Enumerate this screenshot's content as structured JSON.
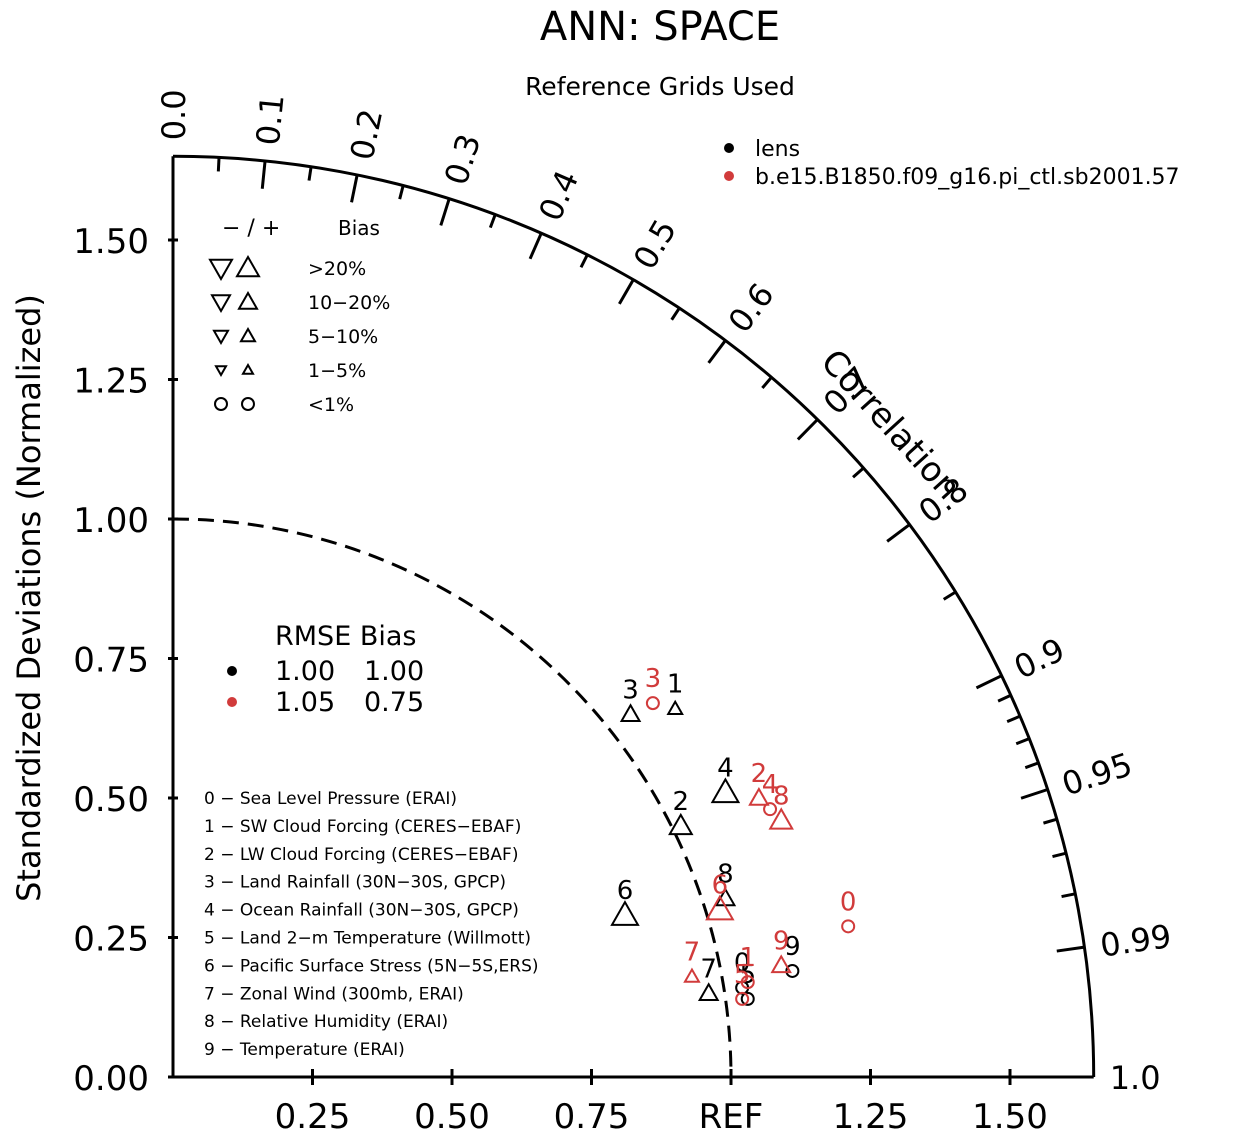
{
  "chart_data": {
    "type": "scatter",
    "title": "ANN: SPACE",
    "subtitle": "Reference Grids Used",
    "ylabel": "Standardized Deviations (Normalized)",
    "arc_label": "Correlation",
    "xlim": [
      0,
      1.65
    ],
    "ylim": [
      0,
      1.65
    ],
    "y_ticks": [
      "0.00",
      "0.25",
      "0.50",
      "0.75",
      "1.00",
      "1.25",
      "1.50"
    ],
    "x_ticks": [
      "0.25",
      "0.50",
      "0.75",
      "REF",
      "1.25",
      "1.50"
    ],
    "correlation_ticks": [
      "0.0",
      "0.1",
      "0.2",
      "0.3",
      "0.4",
      "0.5",
      "0.6",
      "0.7",
      "0.8",
      "0.9",
      "0.95",
      "0.99",
      "1.0"
    ],
    "legend": [
      {
        "name": "lens",
        "color": "#000000"
      },
      {
        "name": "b.e15.B1850.f09_g16.pi_ctl.sb2001.57",
        "color": "#d13b3b"
      }
    ],
    "bias_legend": {
      "header_symbols": "− / +",
      "header_label": "Bias",
      "rows": [
        "&gt;20%",
        "10−20%",
        "5−10%",
        "1−5%",
        "&lt;1%"
      ]
    },
    "rmse_bias_legend": {
      "header": "RMSE  Bias",
      "rows": [
        {
          "rmse": "1.00",
          "bias": "1.00",
          "color": "#000000"
        },
        {
          "rmse": "1.05",
          "bias": "0.75",
          "color": "#d13b3b"
        }
      ]
    },
    "variables": [
      "0 − Sea Level Pressure (ERAI)",
      "1 − SW Cloud Forcing (CERES−EBAF)",
      "2 − LW Cloud Forcing (CERES−EBAF)",
      "3 − Land Rainfall (30N−30S, GPCP)",
      "4 − Ocean Rainfall (30N−30S, GPCP)",
      "5 − Land 2−m Temperature (Willmott)",
      "6 − Pacific Surface Stress (5N−5S,ERS)",
      "7 − Zonal Wind (300mb, ERAI)",
      "8 − Relative Humidity (ERAI)",
      "9 − Temperature (ERAI)"
    ],
    "series": [
      {
        "name": "lens",
        "color": "#000000",
        "points": [
          {
            "label": "0",
            "x": 1.02,
            "y": 0.16,
            "marker": "circle",
            "size": 1
          },
          {
            "label": "1",
            "x": 0.9,
            "y": 0.66,
            "marker": "up",
            "size": 1
          },
          {
            "label": "2",
            "x": 0.91,
            "y": 0.45,
            "marker": "up",
            "size": 3
          },
          {
            "label": "3",
            "x": 0.82,
            "y": 0.65,
            "marker": "up",
            "size": 2
          },
          {
            "label": "4",
            "x": 0.99,
            "y": 0.51,
            "marker": "up",
            "size": 4
          },
          {
            "label": "5",
            "x": 1.03,
            "y": 0.14,
            "marker": "circle",
            "size": 1
          },
          {
            "label": "6",
            "x": 0.81,
            "y": 0.29,
            "marker": "up",
            "size": 4
          },
          {
            "label": "7",
            "x": 0.96,
            "y": 0.15,
            "marker": "up",
            "size": 2
          },
          {
            "label": "8",
            "x": 0.99,
            "y": 0.32,
            "marker": "up",
            "size": 2
          },
          {
            "label": "9",
            "x": 1.11,
            "y": 0.19,
            "marker": "circle",
            "size": 1
          }
        ]
      },
      {
        "name": "b.e15.B1850.f09_g16.pi_ctl.sb2001.57",
        "color": "#d13b3b",
        "points": [
          {
            "label": "0",
            "x": 1.21,
            "y": 0.27,
            "marker": "circle",
            "size": 1
          },
          {
            "label": "1",
            "x": 1.03,
            "y": 0.17,
            "marker": "circle",
            "size": 1
          },
          {
            "label": "2",
            "x": 1.05,
            "y": 0.5,
            "marker": "up",
            "size": 2
          },
          {
            "label": "3",
            "x": 0.86,
            "y": 0.67,
            "marker": "circle",
            "size": 1
          },
          {
            "label": "4",
            "x": 1.07,
            "y": 0.48,
            "marker": "circle",
            "size": 1
          },
          {
            "label": "5",
            "x": 1.02,
            "y": 0.14,
            "marker": "circle",
            "size": 1
          },
          {
            "label": "6",
            "x": 0.98,
            "y": 0.3,
            "marker": "up",
            "size": 4
          },
          {
            "label": "7",
            "x": 0.93,
            "y": 0.18,
            "marker": "up",
            "size": 1
          },
          {
            "label": "8",
            "x": 1.09,
            "y": 0.46,
            "marker": "up",
            "size": 3
          },
          {
            "label": "9",
            "x": 1.09,
            "y": 0.2,
            "marker": "up",
            "size": 2
          }
        ]
      }
    ]
  }
}
